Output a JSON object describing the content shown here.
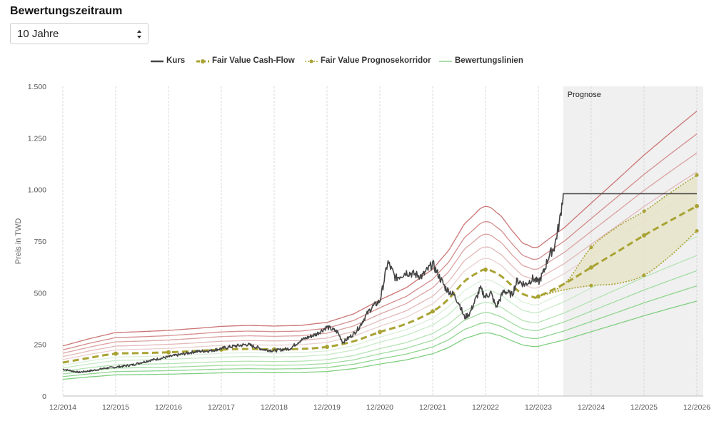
{
  "controls": {
    "title": "Bewertungszeitraum",
    "select_value": "10 Jahre"
  },
  "legend": {
    "kurs": "Kurs",
    "fv_cashflow": "Fair Value Cash-Flow",
    "fv_korridor": "Fair Value Prognosekorridor",
    "bewertungslinien": "Bewertungslinien"
  },
  "colors": {
    "kurs": "#444444",
    "fair_value": "#a9a334",
    "band_fill": "#e8e4c9",
    "prognose_bg": "#f0f0f0",
    "grid": "#d8d8d8"
  },
  "chart_data": {
    "type": "line",
    "title": "",
    "xlabel": "",
    "ylabel": "Preis in TWD",
    "ylim": [
      0,
      1500
    ],
    "xlim": [
      2014.0,
      2027.0
    ],
    "y_ticks": [
      0,
      250,
      500,
      750,
      1000,
      1250,
      1500
    ],
    "y_tick_labels": [
      "0",
      "250",
      "500",
      "750",
      "1.000",
      "1.250",
      "1.500"
    ],
    "x_tick_labels": [
      "12/2014",
      "12/2015",
      "12/2016",
      "12/2017",
      "12/2018",
      "12/2019",
      "12/2020",
      "12/2021",
      "12/2022",
      "12/2023",
      "12/2024",
      "12/2025",
      "12/2026"
    ],
    "x_ticks": [
      2014.0,
      2015.0,
      2016.0,
      2017.0,
      2018.0,
      2019.0,
      2020.0,
      2021.0,
      2022.0,
      2023.0,
      2024.0,
      2025.0,
      2026.0
    ],
    "prognose_start": 2023.47,
    "prognose_label": "Prognose",
    "grid": true,
    "legend_position": "top",
    "series": [
      {
        "name": "Kurs",
        "x": [
          2014.0,
          2014.3,
          2014.6,
          2014.8,
          2015.0,
          2015.3,
          2015.6,
          2015.9,
          2016.2,
          2016.5,
          2016.8,
          2017.0,
          2017.2,
          2017.5,
          2017.8,
          2018.0,
          2018.3,
          2018.5,
          2018.8,
          2019.0,
          2019.2,
          2019.3,
          2019.5,
          2019.6,
          2019.75,
          2019.85,
          2020.0,
          2020.05,
          2020.15,
          2020.3,
          2020.5,
          2020.8,
          2021.0,
          2021.1,
          2021.25,
          2021.4,
          2021.5,
          2021.6,
          2021.7,
          2021.8,
          2021.9,
          2022.0,
          2022.1,
          2022.2,
          2022.35,
          2022.5,
          2022.6,
          2022.75,
          2022.9,
          2023.0,
          2023.1,
          2023.2,
          2023.3,
          2023.4,
          2023.47,
          2026.0
        ],
        "values": [
          130,
          115,
          125,
          135,
          140,
          150,
          170,
          185,
          200,
          215,
          220,
          230,
          240,
          250,
          225,
          220,
          230,
          270,
          300,
          335,
          310,
          260,
          300,
          330,
          395,
          430,
          460,
          520,
          650,
          570,
          600,
          580,
          640,
          590,
          520,
          490,
          450,
          380,
          400,
          460,
          520,
          480,
          500,
          430,
          510,
          490,
          560,
          540,
          570,
          550,
          600,
          680,
          720,
          840,
          980,
          980
        ]
      },
      {
        "name": "Fair Value Cash-Flow",
        "x": [
          2014.0,
          2014.5,
          2015.0,
          2015.5,
          2016.0,
          2016.5,
          2017.0,
          2017.5,
          2018.0,
          2018.5,
          2019.0,
          2019.5,
          2020.0,
          2020.5,
          2021.0,
          2021.3,
          2021.6,
          2021.9,
          2022.0,
          2022.1,
          2022.3,
          2022.5,
          2022.7,
          2022.9,
          2023.0,
          2023.5,
          2024.0,
          2024.5,
          2025.0,
          2025.5,
          2026.0
        ],
        "values": [
          162,
          185,
          205,
          208,
          212,
          218,
          225,
          228,
          226,
          228,
          238,
          265,
          310,
          350,
          410,
          470,
          555,
          605,
          612,
          608,
          580,
          535,
          495,
          480,
          482,
          545,
          623,
          700,
          778,
          850,
          920
        ]
      },
      {
        "name": "Fair Value Prognosekorridor",
        "x": [
          2023.0,
          2023.5,
          2024.0,
          2024.5,
          2025.0,
          2025.5,
          2026.0
        ],
        "values": [
          482,
          545,
          720,
          820,
          895,
          985,
          1070
        ]
      },
      {
        "name": "Fair Value Prognosekorridor",
        "x": [
          2023.0,
          2023.5,
          2024.0,
          2024.5,
          2025.0,
          2025.5,
          2026.0
        ],
        "values": [
          482,
          515,
          535,
          545,
          585,
          680,
          800
        ]
      }
    ],
    "bewertungslinien_factors": [
      0.5,
      0.58,
      0.66,
      0.74,
      0.84,
      0.92,
      1.09,
      1.18,
      1.28,
      1.38,
      1.5
    ]
  }
}
